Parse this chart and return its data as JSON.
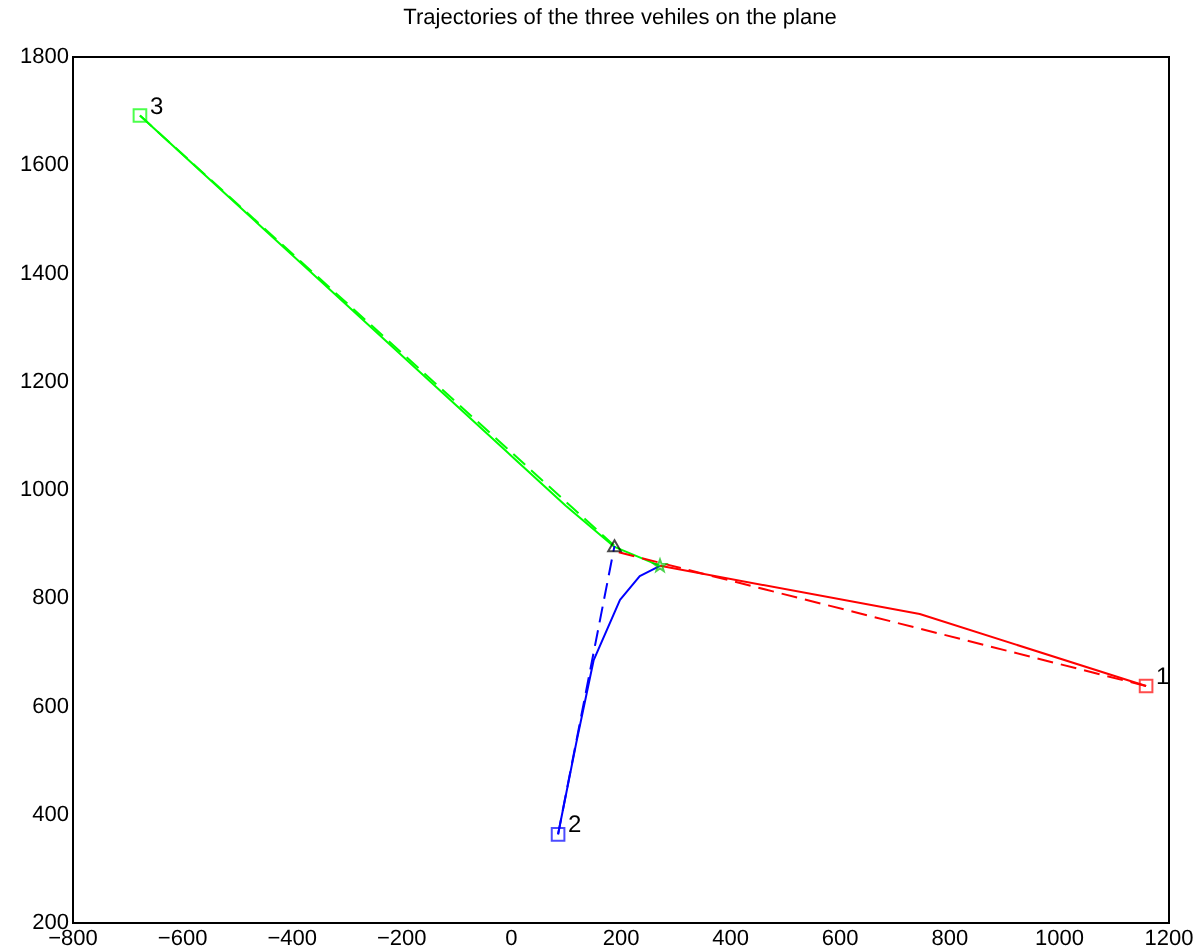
{
  "chart_data": {
    "type": "line",
    "title": "Trajectories of the three vehiles on the plane",
    "xlim": [
      -800,
      1200
    ],
    "ylim": [
      200,
      1800
    ],
    "xticks": [
      -800,
      -600,
      -400,
      -200,
      0,
      200,
      400,
      600,
      800,
      1000,
      1200
    ],
    "yticks": [
      200,
      400,
      600,
      800,
      1000,
      1200,
      1400,
      1600,
      1800
    ],
    "grid": false,
    "series": [
      {
        "color": "#ff0000",
        "x": [
          1160,
          747,
          273
        ],
        "values": [
          636,
          769,
          858
        ],
        "line_style": "solid",
        "marker": "none"
      },
      {
        "color": "#0000ff",
        "x": [
          87,
          120,
          152,
          200,
          236,
          273
        ],
        "values": [
          362,
          530,
          684,
          795,
          839,
          858
        ],
        "line_style": "solid",
        "marker": "none"
      },
      {
        "color": "#00ff00",
        "x": [
          -676,
          101,
          190,
          273
        ],
        "values": [
          1690,
          969,
          893,
          858
        ],
        "line_style": "solid",
        "marker": "none"
      },
      {
        "color": "#ff0000",
        "x": [
          1160,
          190
        ],
        "values": [
          636,
          885
        ],
        "line_style": "dashed",
        "marker": "none"
      },
      {
        "color": "#0000ff",
        "x": [
          87,
          190
        ],
        "values": [
          362,
          895
        ],
        "line_style": "dashed",
        "marker": "none"
      },
      {
        "color": "#00ff00",
        "x": [
          -676,
          190
        ],
        "values": [
          1690,
          895
        ],
        "line_style": "dashed",
        "marker": "none"
      },
      {
        "type": "scatter",
        "x": [
          1160,
          87,
          -676
        ],
        "values": [
          636,
          362,
          1690
        ],
        "colors": [
          "#ff0000",
          "#0000ff",
          "#00ff00"
        ],
        "marker": "square"
      },
      {
        "type": "scatter",
        "color": "#000000",
        "x": [
          190
        ],
        "values": [
          895
        ],
        "marker": "triangle"
      },
      {
        "type": "scatter",
        "color": "#00c000",
        "x": [
          273
        ],
        "values": [
          858
        ],
        "marker": "star"
      }
    ],
    "annotations": [
      {
        "text": "1",
        "x": 1160,
        "y": 636
      },
      {
        "text": "2",
        "x": 87,
        "y": 362
      },
      {
        "text": "3",
        "x": -676,
        "y": 1690
      }
    ]
  }
}
